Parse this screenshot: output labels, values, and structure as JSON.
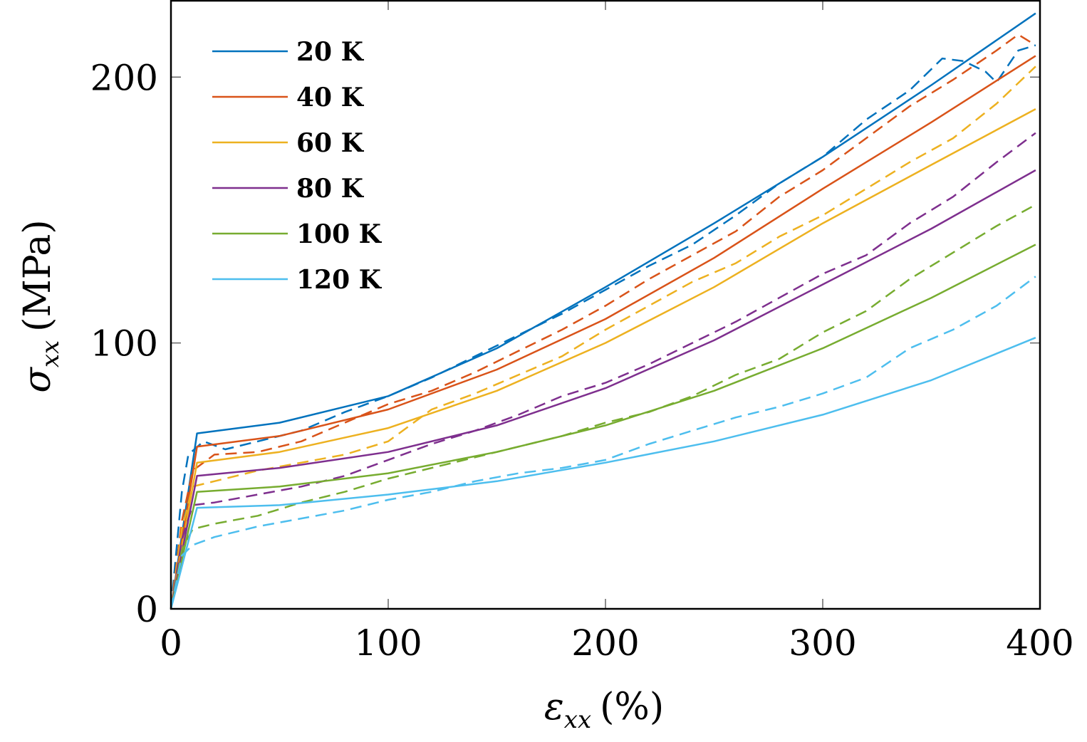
{
  "chart_data": {
    "type": "line",
    "xlabel_base": "ε",
    "xlabel_sub": "xx",
    "xlabel_unit": "(%)",
    "ylabel_base": "σ",
    "ylabel_sub": "xx",
    "ylabel_unit": "(MPa)",
    "xlim": [
      0,
      400
    ],
    "ylim": [
      0,
      229
    ],
    "xticks": [
      0,
      100,
      200,
      300,
      400
    ],
    "yticks": [
      0,
      100,
      200
    ],
    "grid": false,
    "legend_position": "top-left",
    "line_styles": {
      "model": "solid",
      "experiment": "dashed"
    },
    "series": [
      {
        "name": "20 K",
        "color": "#0072BD",
        "model": {
          "x": [
            0,
            12,
            50,
            100,
            150,
            200,
            250,
            300,
            350,
            398
          ],
          "y": [
            0,
            66,
            70,
            80,
            98,
            121,
            145,
            170,
            197,
            224
          ]
        },
        "experiment": {
          "x": [
            0,
            5,
            8,
            15,
            25,
            40,
            60,
            80,
            100,
            120,
            140,
            160,
            180,
            200,
            220,
            240,
            260,
            280,
            300,
            320,
            340,
            355,
            365,
            375,
            380,
            390,
            398
          ],
          "y": [
            0,
            44,
            58,
            63,
            60,
            63,
            67,
            74,
            80,
            87,
            95,
            103,
            111,
            120,
            129,
            137,
            148,
            160,
            170,
            184,
            195,
            207,
            206,
            202,
            198,
            210,
            212
          ]
        }
      },
      {
        "name": "40 K",
        "color": "#D95319",
        "model": {
          "x": [
            0,
            12,
            50,
            100,
            150,
            200,
            250,
            300,
            350,
            398
          ],
          "y": [
            0,
            61,
            65,
            75,
            90,
            109,
            132,
            158,
            183,
            208
          ]
        },
        "experiment": {
          "x": [
            0,
            5,
            10,
            20,
            40,
            60,
            80,
            100,
            120,
            140,
            160,
            180,
            200,
            220,
            240,
            260,
            280,
            300,
            320,
            340,
            360,
            380,
            390,
            398
          ],
          "y": [
            0,
            33,
            52,
            58,
            59,
            63,
            70,
            77,
            82,
            89,
            97,
            105,
            114,
            124,
            133,
            142,
            155,
            165,
            177,
            189,
            199,
            210,
            216,
            212
          ]
        }
      },
      {
        "name": "60 K",
        "color": "#EDB120",
        "model": {
          "x": [
            0,
            12,
            50,
            100,
            150,
            200,
            250,
            300,
            350,
            398
          ],
          "y": [
            0,
            55,
            59,
            68,
            82,
            100,
            121,
            145,
            167,
            188
          ]
        },
        "experiment": {
          "x": [
            0,
            5,
            10,
            20,
            40,
            60,
            80,
            100,
            120,
            140,
            160,
            180,
            200,
            220,
            240,
            260,
            280,
            300,
            320,
            340,
            360,
            380,
            398
          ],
          "y": [
            0,
            30,
            46,
            48,
            52,
            55,
            58,
            63,
            75,
            81,
            88,
            95,
            105,
            114,
            123,
            130,
            140,
            148,
            158,
            168,
            177,
            190,
            204
          ]
        }
      },
      {
        "name": "80 K",
        "color": "#7E2F8E",
        "model": {
          "x": [
            0,
            12,
            50,
            100,
            150,
            200,
            250,
            300,
            350,
            398
          ],
          "y": [
            0,
            50,
            53,
            59,
            69,
            83,
            101,
            122,
            143,
            165
          ]
        },
        "experiment": {
          "x": [
            0,
            5,
            10,
            20,
            40,
            60,
            80,
            100,
            120,
            140,
            160,
            180,
            200,
            220,
            240,
            260,
            280,
            300,
            320,
            340,
            360,
            380,
            398
          ],
          "y": [
            0,
            26,
            39,
            40,
            43,
            46,
            50,
            56,
            62,
            67,
            73,
            80,
            85,
            92,
            100,
            108,
            117,
            126,
            133,
            145,
            155,
            168,
            179
          ]
        }
      },
      {
        "name": "100 K",
        "color": "#77AC30",
        "model": {
          "x": [
            0,
            12,
            50,
            100,
            150,
            200,
            250,
            300,
            350,
            398
          ],
          "y": [
            0,
            44,
            46,
            51,
            59,
            69,
            82,
            98,
            117,
            137
          ]
        },
        "experiment": {
          "x": [
            0,
            5,
            10,
            20,
            40,
            60,
            80,
            100,
            120,
            140,
            160,
            180,
            200,
            220,
            240,
            260,
            280,
            300,
            320,
            340,
            360,
            380,
            398
          ],
          "y": [
            0,
            22,
            30,
            32,
            35,
            40,
            44,
            49,
            53,
            57,
            61,
            65,
            70,
            74,
            80,
            88,
            94,
            104,
            112,
            124,
            134,
            144,
            152
          ]
        }
      },
      {
        "name": "120 K",
        "color": "#4DBEEE",
        "model": {
          "x": [
            0,
            12,
            50,
            100,
            150,
            200,
            250,
            300,
            350,
            398
          ],
          "y": [
            0,
            38,
            39,
            43,
            48,
            55,
            63,
            73,
            86,
            102
          ]
        },
        "experiment": {
          "x": [
            0,
            5,
            10,
            20,
            40,
            60,
            80,
            100,
            120,
            140,
            160,
            180,
            200,
            220,
            240,
            260,
            280,
            300,
            320,
            340,
            360,
            380,
            398
          ],
          "y": [
            0,
            20,
            24,
            27,
            31,
            34,
            37,
            41,
            44,
            48,
            51,
            53,
            56,
            62,
            67,
            72,
            76,
            81,
            87,
            98,
            105,
            114,
            125
          ]
        }
      }
    ]
  }
}
